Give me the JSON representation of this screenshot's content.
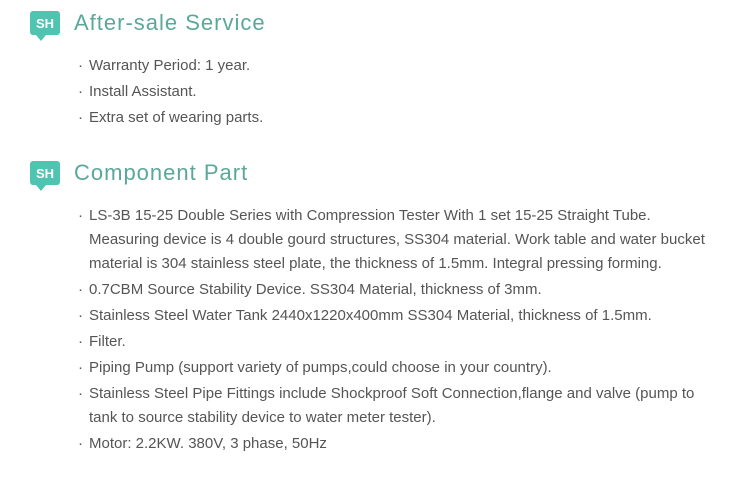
{
  "badge_text": "SH",
  "badge_bg": "#4fc4b0",
  "badge_color": "#ffffff",
  "title_color": "#5aa89a",
  "text_color": "#555555",
  "sections": [
    {
      "title": "After-sale Service",
      "items": [
        "Warranty Period: 1 year.",
        "Install Assistant.",
        "Extra set of wearing parts."
      ]
    },
    {
      "title": "Component Part",
      "items": [
        "LS-3B 15-25 Double Series with Compression Tester With 1 set 15-25 Straight Tube. Measuring device is 4 double gourd structures, SS304 material.\nWork table and water bucket material is 304 stainless steel plate, the thickness of 1.5mm. Integral pressing forming.",
        "0.7CBM Source Stability Device. SS304 Material, thickness of 3mm.",
        "Stainless Steel Water Tank 2440x1220x400mm SS304 Material, thickness of 1.5mm.",
        "Filter.",
        "Piping Pump (support variety of pumps,could choose in your country).",
        "Stainless Steel Pipe Fittings include Shockproof Soft Connection,flange and valve (pump to tank to source stability device to water meter tester).",
        "Motor: 2.2KW. 380V, 3 phase, 50Hz"
      ]
    }
  ]
}
